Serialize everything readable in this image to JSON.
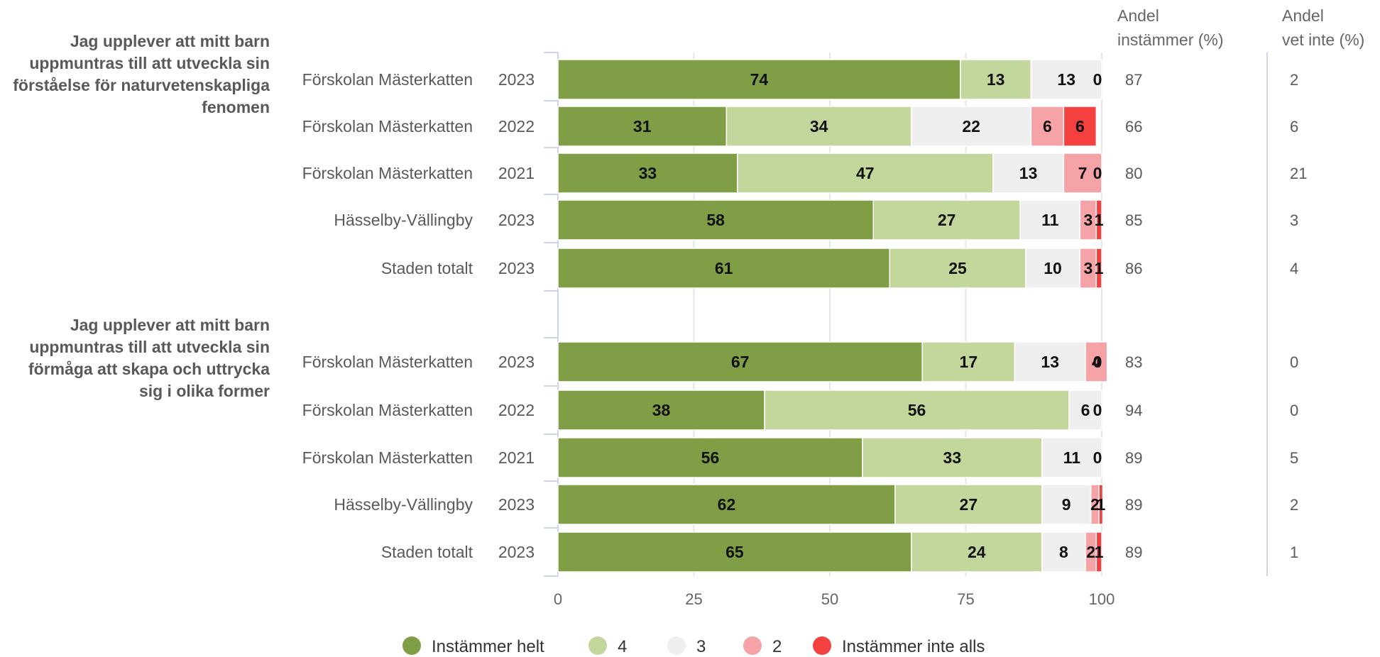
{
  "chart_data": {
    "type": "bar",
    "orientation": "horizontal-stacked-100",
    "xlim": [
      0,
      100
    ],
    "xticks": [
      "0",
      "25",
      "50",
      "75",
      "100"
    ],
    "grid": true,
    "legend_position": "bottom",
    "colors": {
      "Instämmer helt": "#7f9e46",
      "4": "#c3d79c",
      "3": "#efefef",
      "2": "#f5a3a7",
      "Instämmer inte alls": "#f54040"
    },
    "series": [
      {
        "name": "Instämmer helt"
      },
      {
        "name": "4"
      },
      {
        "name": "3"
      },
      {
        "name": "2"
      },
      {
        "name": "Instämmer inte alls"
      }
    ],
    "columns": {
      "instammer_header": [
        "Andel",
        "instämmer (%)"
      ],
      "vetinte_header": [
        "Andel",
        "vet inte (%)"
      ]
    },
    "groups": [
      {
        "question": [
          "Jag upplever att mitt barn",
          "uppmuntras till att utveckla sin",
          "förståelse för naturvetenskapliga",
          "fenomen"
        ],
        "rows": [
          {
            "name": "Förskolan Mästerkatten",
            "year": "2023",
            "values": [
              74,
              13,
              13,
              0,
              0
            ],
            "labels": [
              "74",
              "13",
              "13",
              "",
              "0"
            ],
            "instammer": "87",
            "vet_inte": "2"
          },
          {
            "name": "Förskolan Mästerkatten",
            "year": "2022",
            "values": [
              31,
              34,
              22,
              6,
              6
            ],
            "labels": [
              "31",
              "34",
              "22",
              "6",
              "6"
            ],
            "instammer": "66",
            "vet_inte": "6"
          },
          {
            "name": "Förskolan Mästerkatten",
            "year": "2021",
            "values": [
              33,
              47,
              13,
              7,
              0
            ],
            "labels": [
              "33",
              "47",
              "13",
              "7",
              "0"
            ],
            "instammer": "80",
            "vet_inte": "21"
          },
          {
            "name": "Hässelby-Vällingby",
            "year": "2023",
            "values": [
              58,
              27,
              11,
              3,
              1
            ],
            "labels": [
              "58",
              "27",
              "11",
              "3",
              "1"
            ],
            "instammer": "85",
            "vet_inte": "3"
          },
          {
            "name": "Staden totalt",
            "year": "2023",
            "values": [
              61,
              25,
              10,
              3,
              1
            ],
            "labels": [
              "61",
              "25",
              "10",
              "3",
              "1"
            ],
            "instammer": "86",
            "vet_inte": "4"
          }
        ]
      },
      {
        "question": [
          "Jag upplever att mitt barn",
          "uppmuntras till att utveckla sin",
          "förmåga att skapa och uttrycka",
          "sig i olika former"
        ],
        "rows": [
          {
            "name": "Förskolan Mästerkatten",
            "year": "2023",
            "values": [
              67,
              17,
              13,
              4,
              0
            ],
            "labels": [
              "67",
              "17",
              "13",
              "4",
              "0"
            ],
            "instammer": "83",
            "vet_inte": "0"
          },
          {
            "name": "Förskolan Mästerkatten",
            "year": "2022",
            "values": [
              38,
              56,
              6,
              0,
              0
            ],
            "labels": [
              "38",
              "56",
              "6",
              "",
              "0"
            ],
            "instammer": "94",
            "vet_inte": "0"
          },
          {
            "name": "Förskolan Mästerkatten",
            "year": "2021",
            "values": [
              56,
              33,
              11,
              0,
              0
            ],
            "labels": [
              "56",
              "33",
              "11",
              "",
              "0"
            ],
            "instammer": "89",
            "vet_inte": "5"
          },
          {
            "name": "Hässelby-Vällingby",
            "year": "2023",
            "values": [
              62,
              27,
              9,
              1.5,
              0.7
            ],
            "labels": [
              "62",
              "27",
              "9",
              "2",
              "1"
            ],
            "instammer": "89",
            "vet_inte": "2"
          },
          {
            "name": "Staden totalt",
            "year": "2023",
            "values": [
              65,
              24,
              8,
              2,
              1
            ],
            "labels": [
              "65",
              "24",
              "8",
              "2",
              "1"
            ],
            "instammer": "89",
            "vet_inte": "1"
          }
        ]
      }
    ]
  }
}
